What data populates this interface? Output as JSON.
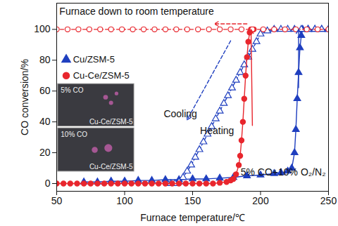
{
  "chart_data": {
    "type": "line",
    "xlabel": "Furnace temperature/℃",
    "ylabel": "CO conversion/%",
    "xlim": [
      50,
      250
    ],
    "xticks": [
      50,
      100,
      150,
      200,
      250
    ],
    "ylim": [
      -5,
      117
    ],
    "yticks": [
      0,
      20,
      40,
      60,
      80,
      100
    ],
    "grid": false,
    "legend": "upper left",
    "annotations": [
      "Furnace down to room temperature",
      "Cooling",
      "Heating",
      "5% CO+10% O₂/N₂"
    ],
    "inset_labels": [
      "5% CO",
      "Cu-Ce/ZSM-5",
      "10% CO",
      "Cu-Ce/ZSM-5"
    ],
    "series": [
      {
        "name": "Cu/ZSM-5",
        "color": "#1f3fbf",
        "marker": "triangle",
        "line_style": "solid",
        "x": [
          70,
          80,
          90,
          100,
          110,
          120,
          130,
          140,
          150,
          160,
          170,
          180,
          190,
          200,
          210,
          215,
          220,
          223,
          225,
          226,
          227,
          228,
          229,
          230,
          231,
          235,
          240,
          245,
          250
        ],
        "values": [
          1,
          1,
          1.5,
          1.5,
          2,
          2,
          2.5,
          2.5,
          3,
          3,
          3.5,
          4,
          5,
          5.5,
          6.5,
          7,
          8,
          10,
          20,
          35,
          55,
          72,
          88,
          96,
          100,
          100,
          100,
          100,
          100
        ]
      },
      {
        "name": "Cu/ZSM-5",
        "color": "#1f3fbf",
        "marker": "triangle-open",
        "line_style": "dashed",
        "x": [
          250,
          245,
          240,
          235,
          230,
          225,
          220,
          215,
          210,
          205,
          200,
          197,
          194,
          191,
          188,
          185,
          182,
          179,
          176,
          173,
          170,
          167,
          164,
          161,
          158,
          155,
          152,
          149,
          146,
          143,
          140,
          137,
          134
        ],
        "values": [
          100,
          100,
          100,
          100,
          100,
          100,
          100,
          100,
          100,
          99,
          97,
          92,
          87,
          82,
          77,
          72,
          67,
          62,
          57,
          52,
          47,
          42,
          37,
          32,
          27,
          22,
          17,
          12,
          8,
          4,
          1,
          0,
          0
        ]
      },
      {
        "name": "Cu-Ce/ZSM-5",
        "color": "#e8262d",
        "marker": "circle",
        "line_style": "solid",
        "x": [
          50,
          55,
          60,
          65,
          70,
          75,
          80,
          85,
          90,
          95,
          100,
          105,
          110,
          115,
          120,
          125,
          130,
          135,
          140,
          145,
          150,
          155,
          160,
          165,
          170,
          175,
          178,
          180,
          182,
          184,
          185,
          186,
          187,
          188,
          189,
          190,
          191,
          192,
          193,
          195
        ],
        "values": [
          0,
          0,
          0,
          0,
          0,
          0,
          0,
          0,
          0,
          0,
          0,
          0,
          0,
          0,
          0,
          0,
          0,
          0,
          0,
          0,
          0,
          0,
          0,
          0,
          0.5,
          1,
          2,
          3,
          6,
          12,
          18,
          28,
          40,
          55,
          70,
          82,
          92,
          98,
          100,
          100
        ]
      },
      {
        "name": "Cu-Ce/ZSM-5",
        "color": "#e8262d",
        "marker": "circle-open",
        "line_style": "dashed",
        "x": [
          250,
          242,
          234,
          226,
          218,
          210,
          202,
          194,
          186,
          178,
          170,
          162,
          154,
          146,
          138,
          130,
          122,
          114,
          106,
          98,
          90,
          82,
          74,
          66,
          58,
          50
        ],
        "values": [
          100,
          100,
          100,
          100,
          100,
          100,
          100,
          100,
          100,
          100,
          100,
          100,
          100,
          100,
          100,
          100,
          100,
          100,
          100,
          100,
          100,
          100,
          100,
          100,
          100,
          100
        ]
      }
    ]
  }
}
